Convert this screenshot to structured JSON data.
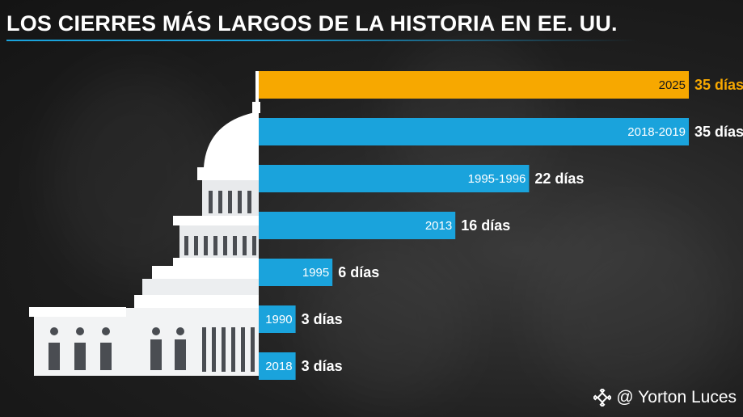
{
  "header": {
    "title": "LOS CIERRES MÁS LARGOS DE LA HISTORIA EN EE. UU."
  },
  "watermark": {
    "handle": "@ Yorton Luces",
    "icon": "binance-diamond-icon"
  },
  "colors": {
    "highlight": "#f7a800",
    "bar": "#1aa3dc",
    "text": "#ffffff",
    "highlight_text": "#1a1a1a"
  },
  "chart_data": {
    "type": "bar",
    "orientation": "horizontal",
    "title": "LOS CIERRES MÁS LARGOS DE LA HISTORIA EN EE. UU.",
    "unit": "días",
    "categories": [
      "2025",
      "2018-2019",
      "1995-1996",
      "2013",
      "1995",
      "1990",
      "2018"
    ],
    "values": [
      35,
      35,
      22,
      16,
      6,
      3,
      3
    ],
    "value_labels": [
      "35 días",
      "35 días",
      "22 días",
      "16 días",
      "6 días",
      "3 días",
      "3 días"
    ],
    "highlight": [
      true,
      false,
      false,
      false,
      false,
      false,
      false
    ]
  }
}
